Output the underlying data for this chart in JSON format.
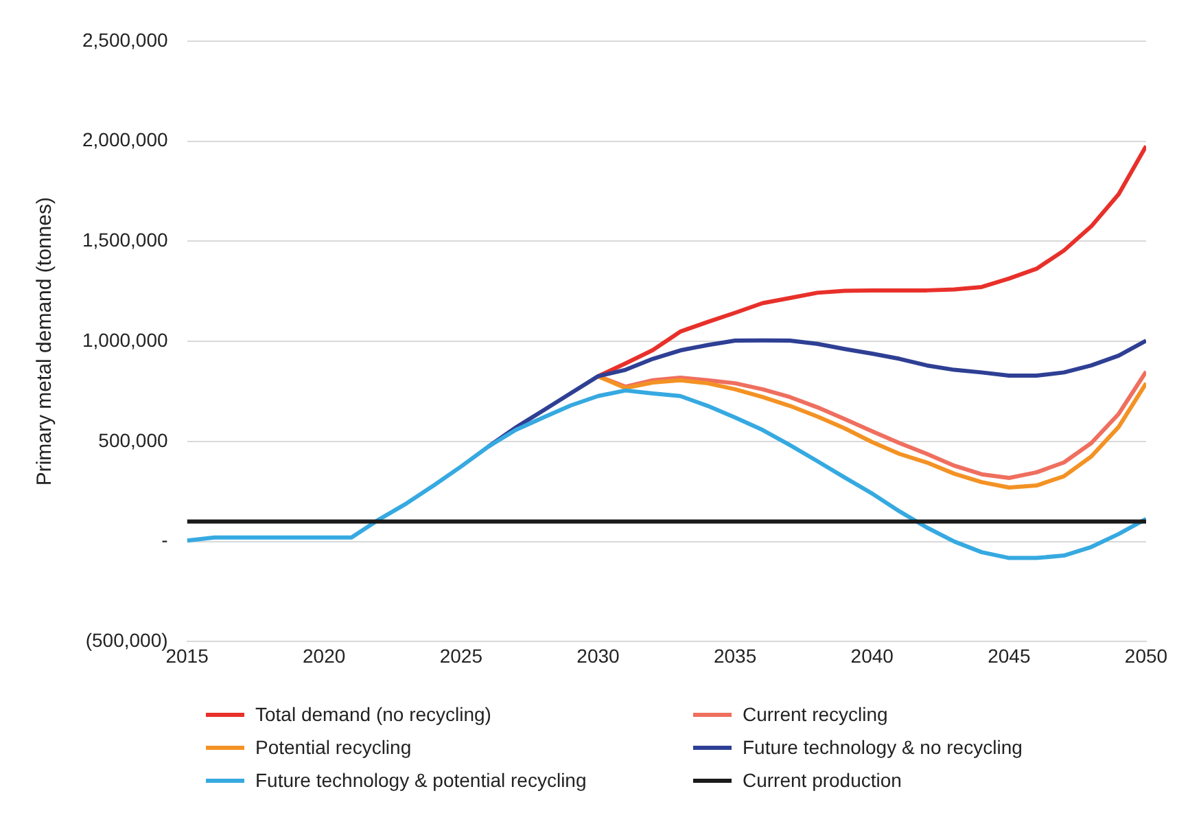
{
  "chart_data": {
    "type": "line",
    "ylabel": "Primary metal demand (tonnes)",
    "x": [
      2015,
      2016,
      2017,
      2018,
      2019,
      2020,
      2021,
      2022,
      2023,
      2024,
      2025,
      2026,
      2027,
      2028,
      2029,
      2030,
      2031,
      2032,
      2033,
      2034,
      2035,
      2036,
      2037,
      2038,
      2039,
      2040,
      2041,
      2042,
      2043,
      2044,
      2045,
      2046,
      2047,
      2048,
      2049,
      2050
    ],
    "xlim": [
      2015,
      2050
    ],
    "xticks": [
      2015,
      2020,
      2025,
      2030,
      2035,
      2040,
      2045,
      2050
    ],
    "ylim": [
      -500000,
      2500000
    ],
    "yticks": [
      {
        "value": -500000,
        "label": "(500,000)"
      },
      {
        "value": 0,
        "label": "-"
      },
      {
        "value": 500000,
        "label": "500,000"
      },
      {
        "value": 1000000,
        "label": "1,000,000"
      },
      {
        "value": 1500000,
        "label": "1,500,000"
      },
      {
        "value": 2000000,
        "label": "2,000,000"
      },
      {
        "value": 2500000,
        "label": "2,500,000"
      }
    ],
    "grid": "y",
    "legend": "bottom",
    "marker": "none",
    "line_style": "solid",
    "series": [
      {
        "name": "Total demand (no recycling)",
        "color": "#e8302a",
        "values": [
          null,
          null,
          null,
          null,
          null,
          null,
          null,
          null,
          null,
          null,
          null,
          null,
          null,
          null,
          null,
          826000,
          890000,
          957000,
          1049000,
          1097000,
          1143000,
          1191000,
          1217000,
          1243000,
          1253000,
          1255000,
          1255000,
          1255000,
          1260000,
          1272000,
          1314000,
          1363000,
          1454000,
          1575000,
          1736000,
          1976000
        ]
      },
      {
        "name": "Current recycling",
        "color": "#ef6f5f",
        "values": [
          null,
          null,
          null,
          null,
          null,
          null,
          null,
          null,
          null,
          null,
          null,
          null,
          null,
          null,
          null,
          826000,
          774000,
          806000,
          819000,
          806000,
          791000,
          761000,
          722000,
          671000,
          612000,
          551000,
          492000,
          438000,
          379000,
          336000,
          318000,
          346000,
          395000,
          492000,
          638000,
          849000
        ]
      },
      {
        "name": "Potential recycling",
        "color": "#f39224",
        "values": [
          null,
          null,
          null,
          null,
          null,
          null,
          null,
          null,
          null,
          null,
          null,
          null,
          null,
          null,
          null,
          826000,
          767000,
          795000,
          806000,
          791000,
          761000,
          722000,
          678000,
          625000,
          566000,
          497000,
          438000,
          395000,
          339000,
          297000,
          270000,
          280000,
          326000,
          425000,
          573000,
          791000
        ]
      },
      {
        "name": "Future technology & no recycling",
        "color": "#2e3f94",
        "values": [
          null,
          null,
          null,
          null,
          null,
          null,
          null,
          null,
          null,
          null,
          null,
          475000,
          570000,
          655000,
          741000,
          826000,
          858000,
          913000,
          955000,
          982000,
          1004000,
          1005000,
          1004000,
          988000,
          962000,
          939000,
          913000,
          880000,
          858000,
          845000,
          829000,
          829000,
          845000,
          880000,
          929000,
          1004000
        ]
      },
      {
        "name": "Future technology & potential recycling",
        "color": "#36a9e1",
        "values": [
          5000,
          20000,
          20000,
          20000,
          20000,
          20000,
          20000,
          110000,
          190000,
          280000,
          375000,
          475000,
          558000,
          620000,
          680000,
          727000,
          755000,
          740000,
          727000,
          678000,
          620000,
          558000,
          482000,
          402000,
          320000,
          240000,
          151000,
          70000,
          0,
          -53000,
          -82000,
          -82000,
          -70000,
          -27000,
          38000,
          113000
        ]
      },
      {
        "name": "Current production",
        "color": "#1a1a1a",
        "values": [
          100000,
          100000,
          100000,
          100000,
          100000,
          100000,
          100000,
          100000,
          100000,
          100000,
          100000,
          100000,
          100000,
          100000,
          100000,
          100000,
          100000,
          100000,
          100000,
          100000,
          100000,
          100000,
          100000,
          100000,
          100000,
          100000,
          100000,
          100000,
          100000,
          100000,
          100000,
          100000,
          100000,
          100000,
          100000,
          100000
        ]
      }
    ]
  }
}
